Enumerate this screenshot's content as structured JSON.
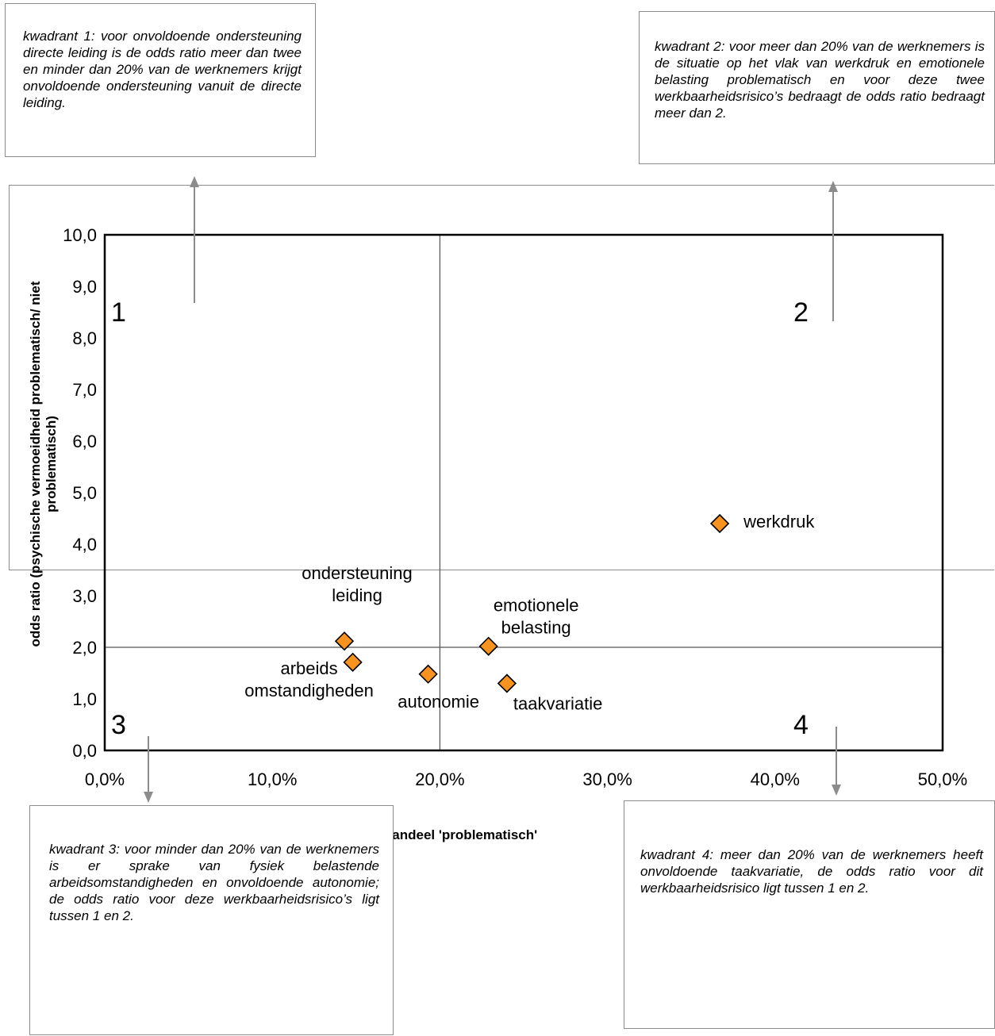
{
  "notes": {
    "q1": "kwadrant 1: voor onvoldoende ondersteuning directe leiding is de odds ratio meer dan twee en minder dan 20% van de werknemers krijgt onvoldoende ondersteuning vanuit de directe leiding.",
    "q2": "kwadrant 2: voor meer dan 20% van de werknemers is de situatie op het vlak van werkdruk en emotionele belasting problematisch en voor deze twee werkbaarheidsrisico’s bedraagt de odds ratio bedraagt meer dan 2.",
    "q3": "kwadrant 3: voor minder dan 20% van de werknemers is er sprake van fysiek belastende arbeidsomstandigheden en onvoldoende autonomie; de odds ratio voor deze werkbaarheidsrisico’s ligt tussen 1 en 2.",
    "q4": "kwadrant 4: meer dan 20% van de werknemers heeft onvoldoende taakvariatie, de odds ratio voor dit werkbaarheidsrisico ligt tussen 1 en 2."
  },
  "chart_data": {
    "type": "scatter",
    "title": "",
    "xlabel": "aandeel 'problematisch'",
    "ylabel_lines": [
      "odds ratio (psychische vermoeidheid problematisch/ niet",
      "problematisch)"
    ],
    "xlim": [
      0,
      0.5
    ],
    "ylim": [
      0,
      10
    ],
    "x_ticks": [
      "0,0%",
      "10,0%",
      "20,0%",
      "30,0%",
      "40,0%",
      "50,0%"
    ],
    "y_ticks": [
      "0,0",
      "1,0",
      "2,0",
      "3,0",
      "4,0",
      "5,0",
      "6,0",
      "7,0",
      "8,0",
      "9,0",
      "10,0"
    ],
    "divider_x": 0.2,
    "divider_y": 2.0,
    "quadrant_labels": [
      "1",
      "2",
      "3",
      "4"
    ],
    "marker_color": "#f7931e",
    "points": [
      {
        "label": [
          "ondersteuning",
          "leiding"
        ],
        "x": 0.143,
        "y": 2.12
      },
      {
        "label": [
          "arbeids",
          "omstandigheden"
        ],
        "x": 0.148,
        "y": 1.71
      },
      {
        "label": [
          "autonomie"
        ],
        "x": 0.193,
        "y": 1.48
      },
      {
        "label": [
          "emotionele",
          "belasting"
        ],
        "x": 0.229,
        "y": 2.02
      },
      {
        "label": [
          "taakvariatie"
        ],
        "x": 0.24,
        "y": 1.3
      },
      {
        "label": [
          "werkdruk"
        ],
        "x": 0.367,
        "y": 4.4
      }
    ]
  }
}
